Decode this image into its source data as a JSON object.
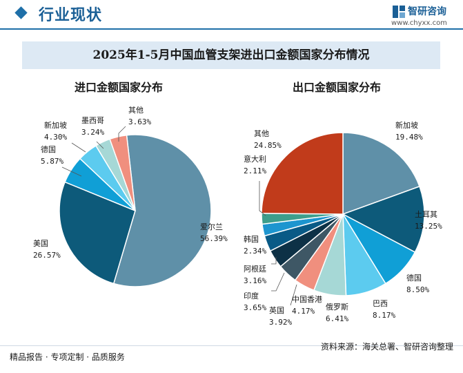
{
  "header": {
    "section_title": "行业现状",
    "brand_name": "智研咨询",
    "brand_url": "www.chyxx.com"
  },
  "title": "2025年1-5月中国血管支架进出口金额国家分布情况",
  "footer": {
    "left": "精品报告 · 专项定制 · 品质服务",
    "right": "资料来源：海关总署、智研咨询整理"
  },
  "chart_data": [
    {
      "type": "pie",
      "title": "进口金额国家分布",
      "slices": [
        {
          "name": "爱尔兰",
          "value": 56.39,
          "label": "56.39%",
          "color": "#5f90a8"
        },
        {
          "name": "美国",
          "value": 26.57,
          "label": "26.57%",
          "color": "#0d5a7a"
        },
        {
          "name": "德国",
          "value": 5.87,
          "label": "5.87%",
          "color": "#109fd6"
        },
        {
          "name": "新加坡",
          "value": 4.3,
          "label": "4.30%",
          "color": "#5ccbef"
        },
        {
          "name": "墨西哥",
          "value": 3.24,
          "label": "3.24%",
          "color": "#a6d8d6"
        },
        {
          "name": "其他",
          "value": 3.63,
          "label": "3.63%",
          "color": "#f08f7e"
        }
      ]
    },
    {
      "type": "pie",
      "title": "出口金额国家分布",
      "slices": [
        {
          "name": "新加坡",
          "value": 19.48,
          "label": "19.48%",
          "color": "#5f90a8"
        },
        {
          "name": "土耳其",
          "value": 13.25,
          "label": "13.25%",
          "color": "#0d5a7a"
        },
        {
          "name": "德国",
          "value": 8.5,
          "label": "8.50%",
          "color": "#109fd6"
        },
        {
          "name": "巴西",
          "value": 8.17,
          "label": "8.17%",
          "color": "#5ccbef"
        },
        {
          "name": "俄罗斯",
          "value": 6.41,
          "label": "6.41%",
          "color": "#a6d8d6"
        },
        {
          "name": "中国香港",
          "value": 4.17,
          "label": "4.17%",
          "color": "#f08f7e"
        },
        {
          "name": "英国",
          "value": 3.92,
          "label": "3.92%",
          "color": "#3e5765"
        },
        {
          "name": "印度",
          "value": 3.65,
          "label": "3.65%",
          "color": "#0d3146"
        },
        {
          "name": "阿根廷",
          "value": 3.16,
          "label": "3.16%",
          "color": "#095a86"
        },
        {
          "name": "韩国",
          "value": 2.34,
          "label": "2.34%",
          "color": "#1d95cf"
        },
        {
          "name": "意大利",
          "value": 2.11,
          "label": "2.11%",
          "color": "#3d9e8c"
        },
        {
          "name": "其他",
          "value": 24.85,
          "label": "24.85%",
          "color": "#c13b1b"
        }
      ]
    }
  ]
}
